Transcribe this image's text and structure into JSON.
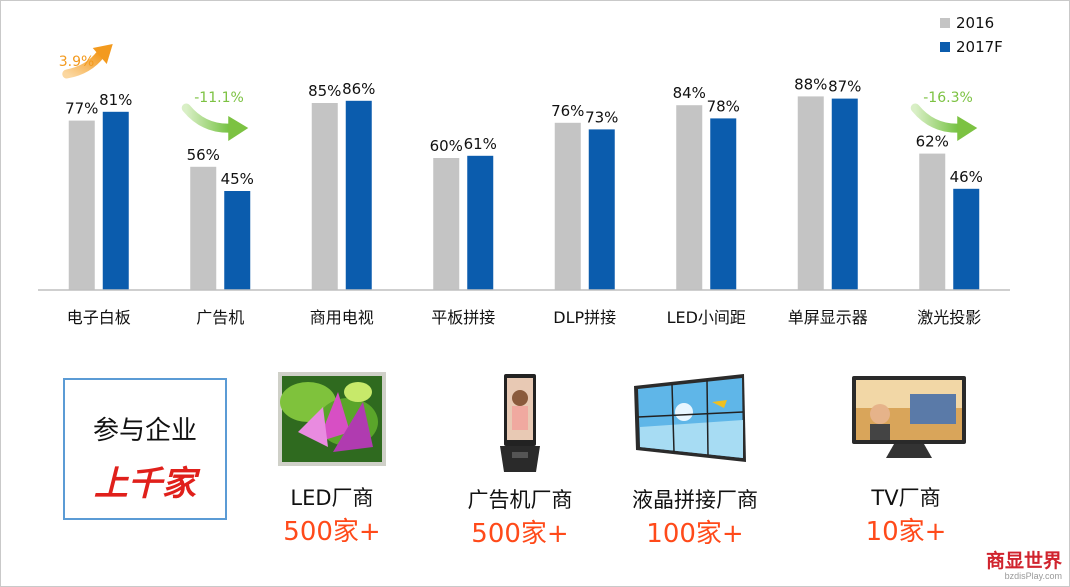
{
  "chart_data": {
    "type": "bar",
    "categories": [
      "电子白板",
      "广告机",
      "商用电视",
      "平板拼接",
      "DLP拼接",
      "LED小间距",
      "单屏显示器",
      "激光投影"
    ],
    "series": [
      {
        "name": "2016",
        "color": "#c4c4c4",
        "values": [
          77,
          56,
          85,
          60,
          76,
          84,
          88,
          62
        ],
        "labels": [
          "77%",
          "56%",
          "85%",
          "60%",
          "76%",
          "84%",
          "88%",
          "62%"
        ]
      },
      {
        "name": "2017F",
        "color": "#0b5cad",
        "values": [
          81,
          45,
          86,
          61,
          73,
          78,
          87,
          46
        ],
        "labels": [
          "81%",
          "45%",
          "86%",
          "61%",
          "73%",
          "78%",
          "87%",
          "46%"
        ]
      }
    ],
    "ylim": [
      0,
      100
    ],
    "legend_position": "top-right",
    "grid": false,
    "annotations": [
      {
        "category": "电子白板",
        "text": "3.9%",
        "color": "#f39a1e",
        "direction": "up"
      },
      {
        "category": "广告机",
        "text": "-11.1%",
        "color": "#7cc242",
        "direction": "down"
      },
      {
        "category": "激光投影",
        "text": "-16.3%",
        "color": "#7cc242",
        "direction": "down"
      }
    ]
  },
  "callout": {
    "line1": "参与企业",
    "line2": "上千家"
  },
  "products": [
    {
      "name": "LED厂商",
      "count": "500家+",
      "icon": "led-screen-image"
    },
    {
      "name": "广告机厂商",
      "count": "500家+",
      "icon": "ad-kiosk-image"
    },
    {
      "name": "液晶拼接厂商",
      "count": "100家+",
      "icon": "video-wall-image"
    },
    {
      "name": "TV厂商",
      "count": "10家+",
      "icon": "tv-image"
    }
  ],
  "watermark": {
    "main": "商显世界",
    "sub": "bzdisPlay.com"
  }
}
